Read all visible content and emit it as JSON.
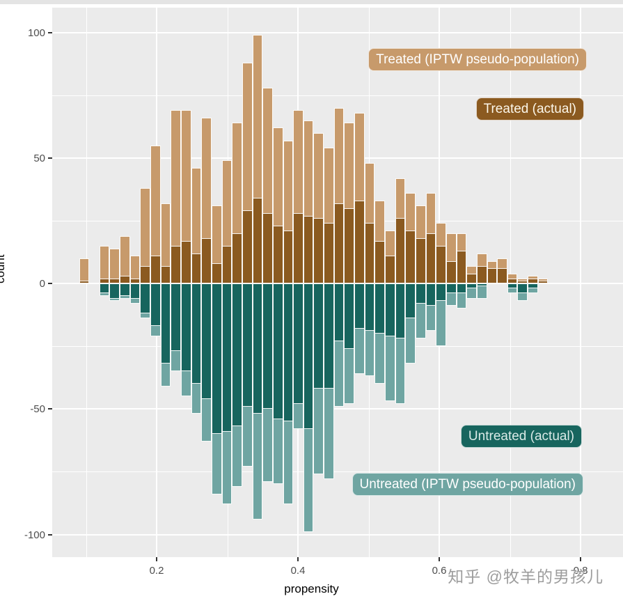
{
  "page": {
    "background": "#ffffff",
    "top_strip_color": "#e4e4e4"
  },
  "watermark": {
    "text": "知乎 @牧羊的男孩儿",
    "color": "#9d9d9d"
  },
  "axis_style": {
    "tick_label_color": "#4D4D4D",
    "title_color": "#000000",
    "panel_background": "#EBEBEB",
    "grid_color": "#FFFFFF"
  },
  "chart_data": {
    "type": "bar",
    "subtype": "mirror-histogram",
    "title": "",
    "xlabel": "propensity",
    "ylabel": "count",
    "grid": "white major/minor gridlines on gray panel",
    "legend_position": "labels drawn inside panel as rounded badges",
    "x_tick_labels": [
      "0.2",
      "0.4",
      "0.6",
      "0.8"
    ],
    "x_tick_values": [
      0.2,
      0.4,
      0.6,
      0.8
    ],
    "y_tick_labels": [
      "100",
      "50",
      "0",
      "-50",
      "-100"
    ],
    "y_tick_values": [
      100,
      50,
      0,
      -50,
      -100
    ],
    "xlim": [
      0.052,
      0.86
    ],
    "ylim": [
      -109,
      110
    ],
    "bin_width": 0.0144,
    "propensity": [
      0.097,
      0.112,
      0.126,
      0.141,
      0.155,
      0.17,
      0.184,
      0.198,
      0.213,
      0.227,
      0.242,
      0.256,
      0.271,
      0.285,
      0.299,
      0.314,
      0.328,
      0.343,
      0.357,
      0.372,
      0.386,
      0.4,
      0.415,
      0.429,
      0.444,
      0.458,
      0.473,
      0.487,
      0.501,
      0.516,
      0.53,
      0.545,
      0.559,
      0.574,
      0.588,
      0.602,
      0.617,
      0.631,
      0.646,
      0.66,
      0.675,
      0.689,
      0.703,
      0.718,
      0.732,
      0.747
    ],
    "series": [
      {
        "name": "Treated (IPTW pseudo-population)",
        "role": "treated_pseudo",
        "direction": "up",
        "color": "#C79A6B",
        "values": [
          10,
          0,
          15,
          14,
          19,
          11,
          38,
          55,
          32,
          69,
          69,
          46,
          66,
          31,
          49,
          64,
          88,
          99,
          78,
          62,
          57,
          69,
          65,
          60,
          54,
          70,
          64,
          68,
          48,
          33,
          21,
          42,
          36,
          31,
          36,
          24,
          20,
          20,
          7,
          12,
          9,
          10,
          4,
          2,
          3,
          2
        ]
      },
      {
        "name": "Treated (actual)",
        "role": "treated_actual",
        "direction": "up",
        "color": "#8B5A20",
        "values": [
          1,
          0,
          2,
          2,
          3,
          2,
          7,
          11,
          7,
          15,
          17,
          12,
          18,
          8,
          15,
          20,
          29,
          34,
          28,
          23,
          21,
          28,
          27,
          26,
          24,
          32,
          30,
          33,
          24,
          17,
          11,
          26,
          21,
          18,
          20,
          15,
          9,
          13,
          4,
          7,
          6,
          6,
          2,
          1,
          2,
          1
        ]
      },
      {
        "name": "Untreated (actual)",
        "role": "untreated_actual",
        "direction": "down",
        "color": "#17655E",
        "values": [
          0,
          0,
          4,
          6,
          5,
          6,
          12,
          17,
          32,
          27,
          35,
          40,
          46,
          60,
          59,
          57,
          49,
          52,
          50,
          54,
          55,
          48,
          58,
          42,
          42,
          23,
          26,
          18,
          19,
          20,
          21,
          22,
          14,
          8,
          9,
          7,
          4,
          4,
          2,
          1,
          0,
          0,
          2,
          4,
          2,
          0
        ]
      },
      {
        "name": "Untreated (IPTW pseudo-population)",
        "role": "untreated_pseudo",
        "direction": "down",
        "color": "#6FA5A2",
        "values": [
          0,
          0,
          5,
          7,
          6,
          8,
          14,
          21,
          41,
          35,
          45,
          52,
          63,
          84,
          88,
          81,
          73,
          94,
          79,
          80,
          88,
          58,
          99,
          76,
          78,
          49,
          48,
          36,
          37,
          40,
          47,
          48,
          32,
          22,
          19,
          25,
          9,
          10,
          6,
          6,
          0,
          0,
          4,
          7,
          4,
          0
        ]
      }
    ],
    "annotations": [
      {
        "role": "treated_pseudo",
        "text": "Treated (IPTW pseudo-population)",
        "bg": "#C79A6B",
        "fg": "#FFFFFF"
      },
      {
        "role": "treated_actual",
        "text": "Treated (actual)",
        "bg": "#8B5A20",
        "fg": "#FCF7EA"
      },
      {
        "role": "untreated_actual",
        "text": "Untreated (actual)",
        "bg": "#17655E",
        "fg": "#D9EAE7"
      },
      {
        "role": "untreated_pseudo",
        "text": "Untreated (IPTW pseudo-population)",
        "bg": "#6FA5A2",
        "fg": "#FFFFFF"
      }
    ]
  }
}
